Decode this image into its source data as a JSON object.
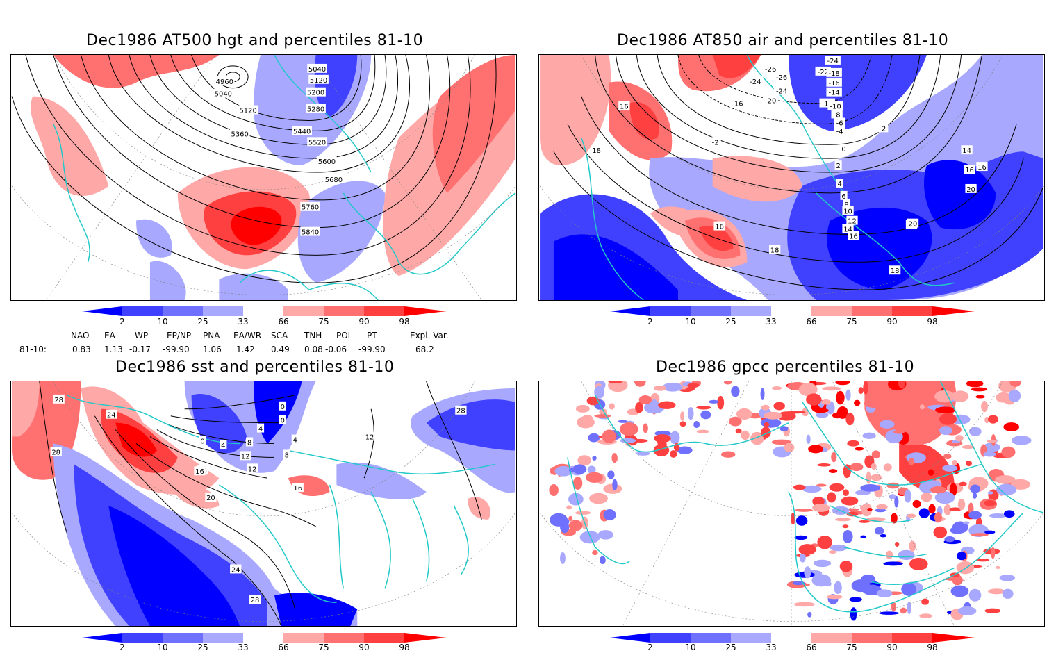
{
  "panels": [
    {
      "id": "p1",
      "title": "Dec1986 AT500 hgt and percentiles 81-10",
      "contour_labels": [
        "4960",
        "5040",
        "5040",
        "5120",
        "5120",
        "5200",
        "5280",
        "5360",
        "5440",
        "5520",
        "5600",
        "5680",
        "5760",
        "5840"
      ]
    },
    {
      "id": "p2",
      "title": "Dec1986 AT850 air and percentiles 81-10",
      "contour_labels": [
        "-24",
        "-26",
        "-24",
        "-26",
        "-24",
        "-22",
        "-20",
        "-18",
        "-16",
        "-16",
        "-14",
        "-12",
        "-10",
        "-8",
        "-6",
        "-4",
        "-2",
        "-2",
        "0",
        "2",
        "4",
        "6",
        "8",
        "10",
        "12",
        "14",
        "16",
        "16",
        "16",
        "16",
        "16",
        "18",
        "18",
        "18",
        "20",
        "20",
        "14",
        "16"
      ]
    },
    {
      "id": "p3",
      "title": "Dec1986 sst and percentiles 81-10",
      "contour_labels": [
        "28",
        "24",
        "28",
        "0",
        "4",
        "8",
        "12",
        "16",
        "0",
        "4",
        "8",
        "12",
        "16",
        "16",
        "20",
        "24",
        "28",
        "28",
        "12",
        "4",
        "0"
      ]
    },
    {
      "id": "p4",
      "title": "Dec1986 gpcc percentiles 81-10",
      "contour_labels": []
    }
  ],
  "colorbar": {
    "labels": [
      "2",
      "10",
      "25",
      "33",
      "66",
      "75",
      "90",
      "98"
    ],
    "colors": {
      "dark_blue": "#0000ff",
      "mid_blue": "#4040ff",
      "light_blue": "#7070ff",
      "pale_blue": "#a8a8ff",
      "pale_red": "#ffa8a8",
      "light_red": "#ff7070",
      "mid_red": "#ff4040",
      "dark_red": "#ff0000"
    }
  },
  "indices": {
    "headers": [
      "NAO",
      "EA",
      "WP",
      "EP/NP",
      "PNA",
      "EA/WR",
      "SCA",
      "TNH",
      "POL",
      "PT",
      "Expl. Var."
    ],
    "row_label": "81-10:",
    "values": [
      "0.83",
      "1.13",
      "-0.17",
      "-99.90",
      "1.06",
      "1.42",
      "0.49",
      "0.08",
      "-0.06",
      "-99.90",
      "68.2"
    ]
  },
  "colors": {
    "coast": "#21c8c8",
    "contour": "#000000",
    "grid": "#808080"
  }
}
